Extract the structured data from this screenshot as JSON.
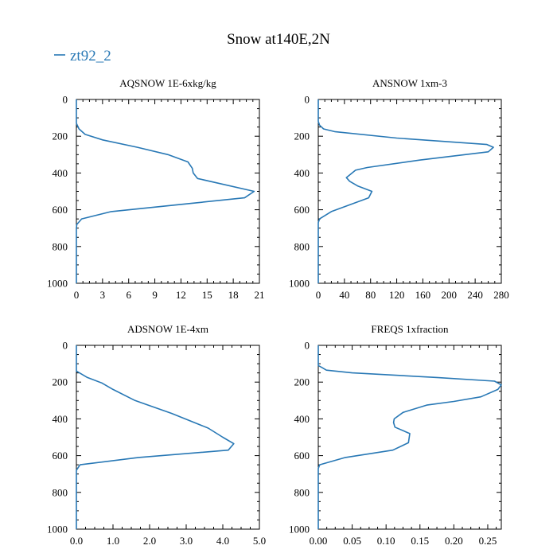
{
  "title": "Snow at140E,2N",
  "legend": {
    "label": "zt92_2",
    "color": "#2878b5"
  },
  "chart_data": [
    {
      "type": "line",
      "title": "AQSNOW  1E-6xkg/kg",
      "series": [
        {
          "name": "zt92_2",
          "color": "#2878b5",
          "x": [
            0,
            0,
            0,
            0.3,
            1.0,
            3.0,
            7.0,
            10.5,
            12.8,
            13.3,
            13.4,
            13.9,
            20.4,
            19.3,
            4.0,
            0.6,
            0.05,
            0,
            0
          ],
          "y": [
            0,
            100,
            130,
            160,
            190,
            220,
            260,
            300,
            340,
            375,
            400,
            430,
            500,
            535,
            610,
            650,
            680,
            700,
            1000
          ]
        }
      ],
      "xticks": [
        "0",
        "3",
        "6",
        "9",
        "12",
        "15",
        "18",
        "21"
      ],
      "yticks": [
        "0",
        "200",
        "400",
        "600",
        "800",
        "1000"
      ],
      "xlim": [
        0,
        21
      ],
      "ylim": [
        0,
        1000
      ]
    },
    {
      "type": "line",
      "title": "ANSNOW  1xm-3",
      "series": [
        {
          "name": "zt92_2",
          "color": "#2878b5",
          "x": [
            0,
            0,
            0,
            2,
            8,
            25,
            120,
            258,
            268,
            260,
            155,
            75,
            57,
            43,
            48,
            60,
            82,
            77,
            20,
            2,
            0,
            0
          ],
          "y": [
            0,
            100,
            120,
            140,
            160,
            175,
            210,
            245,
            260,
            285,
            330,
            370,
            385,
            425,
            445,
            470,
            500,
            535,
            610,
            650,
            670,
            1000
          ]
        }
      ],
      "xticks": [
        "0",
        "40",
        "80",
        "120",
        "160",
        "200",
        "240",
        "280"
      ],
      "yticks": [
        "0",
        "200",
        "400",
        "600",
        "800",
        "1000"
      ],
      "xlim": [
        0,
        280
      ],
      "ylim": [
        0,
        1000
      ]
    },
    {
      "type": "line",
      "title": "ADSNOW  1E-4xm",
      "series": [
        {
          "name": "zt92_2",
          "color": "#2878b5",
          "x": [
            0,
            0,
            0,
            0.3,
            0.7,
            1.0,
            1.6,
            2.6,
            3.6,
            4.0,
            4.3,
            4.15,
            1.7,
            0.1,
            0,
            0
          ],
          "y": [
            0,
            100,
            140,
            175,
            205,
            240,
            300,
            370,
            450,
            500,
            535,
            570,
            610,
            650,
            680,
            1000
          ]
        }
      ],
      "xticks": [
        "0.0",
        "1.0",
        "2.0",
        "3.0",
        "4.0",
        "5.0"
      ],
      "yticks": [
        "0",
        "200",
        "400",
        "600",
        "800",
        "1000"
      ],
      "xlim": [
        0,
        5
      ],
      "ylim": [
        0,
        1000
      ]
    },
    {
      "type": "line",
      "title": "FREQS  1xfraction",
      "series": [
        {
          "name": "zt92_2",
          "color": "#2878b5",
          "x": [
            0,
            0,
            0,
            0.005,
            0.012,
            0.05,
            0.175,
            0.26,
            0.27,
            0.265,
            0.24,
            0.2,
            0.16,
            0.125,
            0.112,
            0.111,
            0.113,
            0.135,
            0.133,
            0.11,
            0.04,
            0.002,
            0,
            0
          ],
          "y": [
            0,
            100,
            110,
            120,
            135,
            150,
            175,
            195,
            215,
            240,
            280,
            305,
            325,
            365,
            400,
            420,
            445,
            480,
            530,
            570,
            610,
            650,
            670,
            1000
          ]
        }
      ],
      "xticks": [
        "0.00",
        "0.05",
        "0.10",
        "0.15",
        "0.20",
        "0.25"
      ],
      "yticks": [
        "0",
        "200",
        "400",
        "600",
        "800",
        "1000"
      ],
      "xlim": [
        0,
        0.27
      ],
      "ylim": [
        0,
        1000
      ]
    }
  ]
}
